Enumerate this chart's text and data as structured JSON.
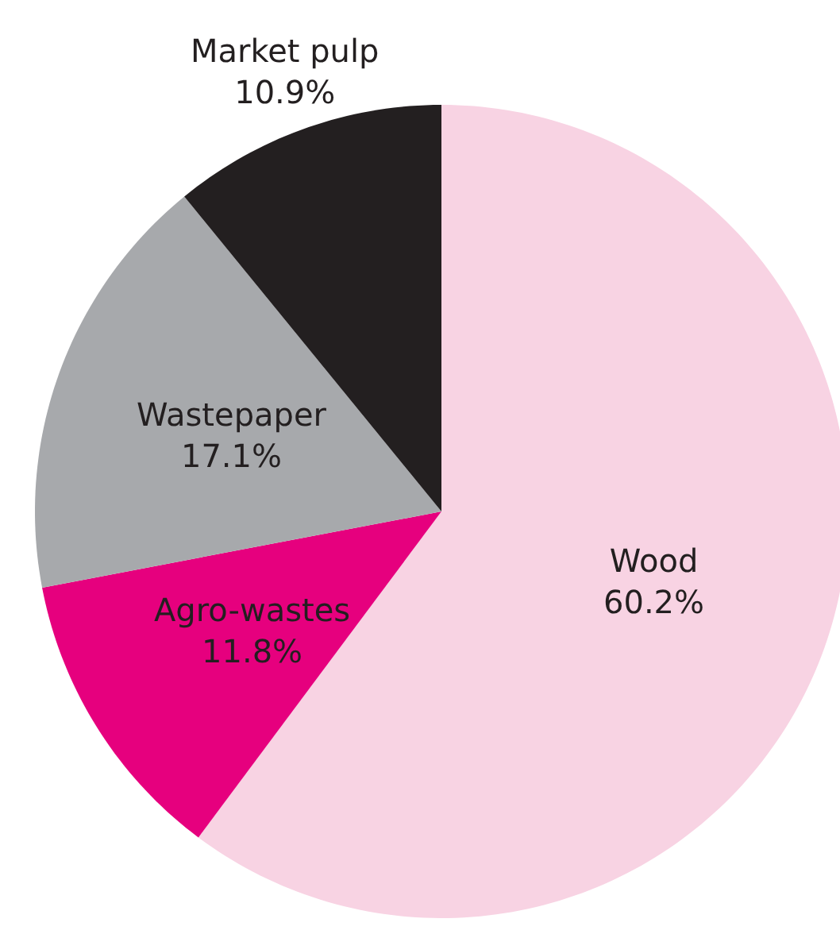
{
  "chart_data": {
    "type": "pie",
    "categories": [
      "Wood",
      "Agro-wastes",
      "Wastepaper",
      "Market pulp"
    ],
    "values": [
      60.2,
      11.8,
      17.1,
      10.9
    ],
    "value_labels": [
      "60.2%",
      "11.8%",
      "17.1%",
      "10.9%"
    ],
    "colors": [
      "#f8d3e3",
      "#e6007e",
      "#a7a9ac",
      "#231f20"
    ]
  }
}
